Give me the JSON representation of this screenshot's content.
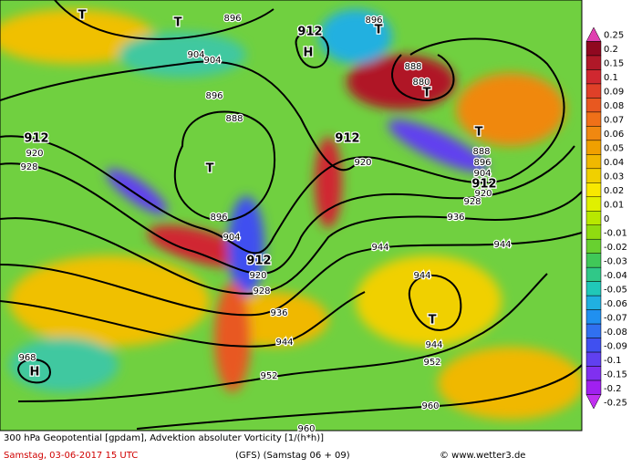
{
  "map": {
    "labels": [
      "912",
      "H",
      "T",
      "T",
      "896",
      "896",
      "T",
      "904",
      "904",
      "896",
      "888",
      "T",
      "912",
      "920",
      "928",
      "896",
      "904",
      "912",
      "920",
      "928",
      "936",
      "944",
      "952",
      "960",
      "968",
      "H",
      "912",
      "920",
      "888",
      "880",
      "T",
      "T",
      "888",
      "896",
      "904",
      "912",
      "920",
      "928",
      "936",
      "944",
      "944",
      "944",
      "T",
      "944",
      "952",
      "960"
    ],
    "colorbar": [
      {
        "label": "0.25",
        "color": "#e040b0"
      },
      {
        "label": "0.2",
        "color": "#900820"
      },
      {
        "label": "0.15",
        "color": "#b01828"
      },
      {
        "label": "0.1",
        "color": "#d02830"
      },
      {
        "label": "0.09",
        "color": "#e04028"
      },
      {
        "label": "0.08",
        "color": "#e85820"
      },
      {
        "label": "0.07",
        "color": "#f07018"
      },
      {
        "label": "0.06",
        "color": "#f08810"
      },
      {
        "label": "0.05",
        "color": "#f0a000"
      },
      {
        "label": "0.04",
        "color": "#f0b800"
      },
      {
        "label": "0.03",
        "color": "#f0d000"
      },
      {
        "label": "0.02",
        "color": "#f8e800"
      },
      {
        "label": "0.01",
        "color": "#e0f000"
      },
      {
        "label": "0",
        "color": "#b8e800"
      },
      {
        "label": "-0.01",
        "color": "#90dc10"
      },
      {
        "label": "-0.02",
        "color": "#68d030"
      },
      {
        "label": "-0.03",
        "color": "#40c858"
      },
      {
        "label": "-0.04",
        "color": "#30c888"
      },
      {
        "label": "-0.05",
        "color": "#20c8b8"
      },
      {
        "label": "-0.06",
        "color": "#20b0e0"
      },
      {
        "label": "-0.07",
        "color": "#2090f0"
      },
      {
        "label": "-0.08",
        "color": "#3070f0"
      },
      {
        "label": "-0.09",
        "color": "#4050f0"
      },
      {
        "label": "-0.1",
        "color": "#6040f0"
      },
      {
        "label": "-0.15",
        "color": "#8030f0"
      },
      {
        "label": "-0.2",
        "color": "#a020f0"
      },
      {
        "label": "-0.25",
        "color": "#c030f0"
      }
    ]
  },
  "footer": {
    "title": "300 hPa Geopotential [gpdam], Advektion absoluter Vorticity [1/(h*h)]",
    "date": "Samstag, 03-06-2017  15 UTC",
    "model": "(GFS)  (Samstag 06 + 09)",
    "credit": "© www.wetter3.de"
  }
}
